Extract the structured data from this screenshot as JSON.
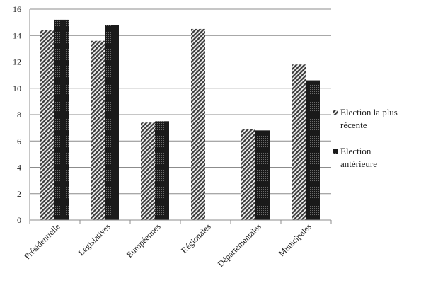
{
  "chart_data": {
    "type": "bar",
    "categories": [
      "Présidentielle",
      "Législatives",
      "Européennes",
      "Régionales",
      "Départementales",
      "Municipales"
    ],
    "series": [
      {
        "name": "Election la plus récente",
        "values": [
          14.4,
          13.6,
          7.4,
          14.5,
          6.9,
          11.8
        ],
        "pattern": "hatch-light"
      },
      {
        "name": "Election antérieure",
        "values": [
          15.2,
          14.8,
          7.5,
          null,
          6.8,
          10.6
        ],
        "pattern": "hatch-dark"
      }
    ],
    "ylim": [
      0,
      16
    ],
    "yticks": [
      0,
      2,
      4,
      6,
      8,
      10,
      12,
      14,
      16
    ],
    "grid": true,
    "legend": {
      "position": "right",
      "entries": [
        {
          "lines": [
            "Election la plus",
            "récente"
          ]
        },
        {
          "lines": [
            "Election",
            "antérieure"
          ]
        }
      ]
    },
    "title": "",
    "xlabel": "",
    "ylabel": ""
  }
}
